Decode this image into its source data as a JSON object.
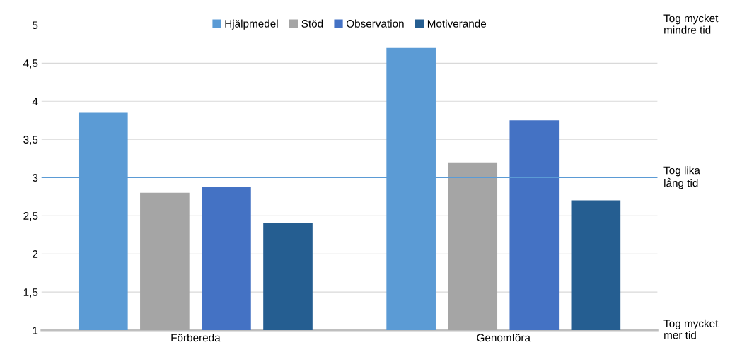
{
  "chart_data": {
    "type": "bar",
    "categories": [
      "Förbereda",
      "Genomföra"
    ],
    "series": [
      {
        "name": "Hjälpmedel",
        "color": "#5b9bd5",
        "values": [
          3.85,
          4.7
        ]
      },
      {
        "name": "Stöd",
        "color": "#a5a5a5",
        "values": [
          2.8,
          3.2
        ]
      },
      {
        "name": "Observation",
        "color": "#4472c4",
        "values": [
          2.88,
          3.75
        ]
      },
      {
        "name": "Motiverande",
        "color": "#255e91",
        "values": [
          2.4,
          2.7
        ]
      }
    ],
    "ylim": [
      1,
      5
    ],
    "yticks": [
      1,
      {
        "value": 1.5,
        "label": "1,5"
      },
      2,
      {
        "value": 2.5,
        "label": "2,5"
      },
      3,
      {
        "value": 3.5,
        "label": "3,5"
      },
      4,
      {
        "value": 4.5,
        "label": "4,5"
      },
      5
    ],
    "grid": "y",
    "legend": "top",
    "ref_lines": [
      {
        "axis": "y",
        "value": 3,
        "color": "#5b9bd5"
      }
    ],
    "annotations": [
      "Tog mycket\nmindre tid",
      "Tog lika\nlång tid",
      "Tog mycket\nmer tid"
    ]
  }
}
